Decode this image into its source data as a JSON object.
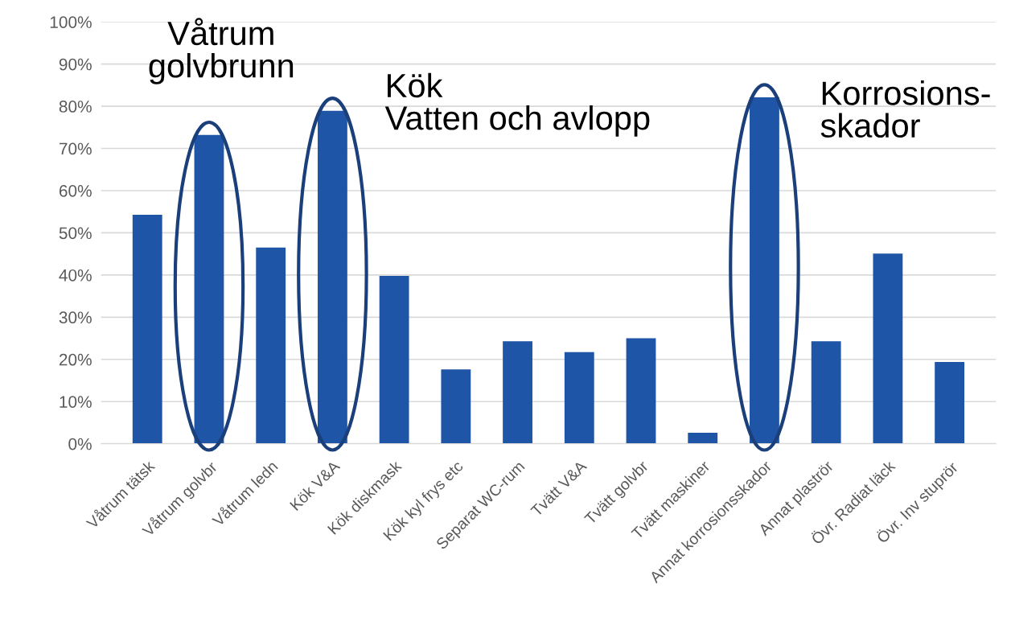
{
  "chart_data": {
    "type": "bar",
    "categories": [
      "Våtrum tätsk",
      "Våtrum golvbr",
      "Våtrum ledn",
      "Kök V&A",
      "Kök diskmask",
      "Kök kyl frys etc",
      "Separat WC-rum",
      "Tvätt V&A",
      "Tvätt golvbr",
      "Tvätt maskiner",
      "Annat korrosionsskador",
      "Annat plaströr",
      "Övr. Radiat läck",
      "Övr. Inv stuprör"
    ],
    "values": [
      54.3,
      73.2,
      46.5,
      78.9,
      39.8,
      17.6,
      24.3,
      21.7,
      25.0,
      2.6,
      82.1,
      24.3,
      45.1,
      19.4
    ],
    "color": "#1f55a6",
    "ylim": [
      0,
      100
    ],
    "yticks": [
      {
        "value": 0,
        "label": "0%"
      },
      {
        "value": 10,
        "label": "10%"
      },
      {
        "value": 20,
        "label": "20%"
      },
      {
        "value": 30,
        "label": "30%"
      },
      {
        "value": 40,
        "label": "40%"
      },
      {
        "value": 50,
        "label": "50%"
      },
      {
        "value": 60,
        "label": "60%"
      },
      {
        "value": 70,
        "label": "70%"
      },
      {
        "value": 80,
        "label": "80%"
      },
      {
        "value": 90,
        "label": "90%"
      },
      {
        "value": 100,
        "label": "100%"
      }
    ],
    "grid": "y",
    "annotations": [
      {
        "text": "Våtrum\ngolvbrunn",
        "x": "Våtrum golvbr",
        "y": 73.2
      },
      {
        "text": "Kök\nVatten och avlopp",
        "x": "Kök V&A",
        "y": 78.9
      },
      {
        "text": "Korrosions-\nskador",
        "x": "Annat korrosionsskador",
        "y": 82.1
      }
    ]
  }
}
